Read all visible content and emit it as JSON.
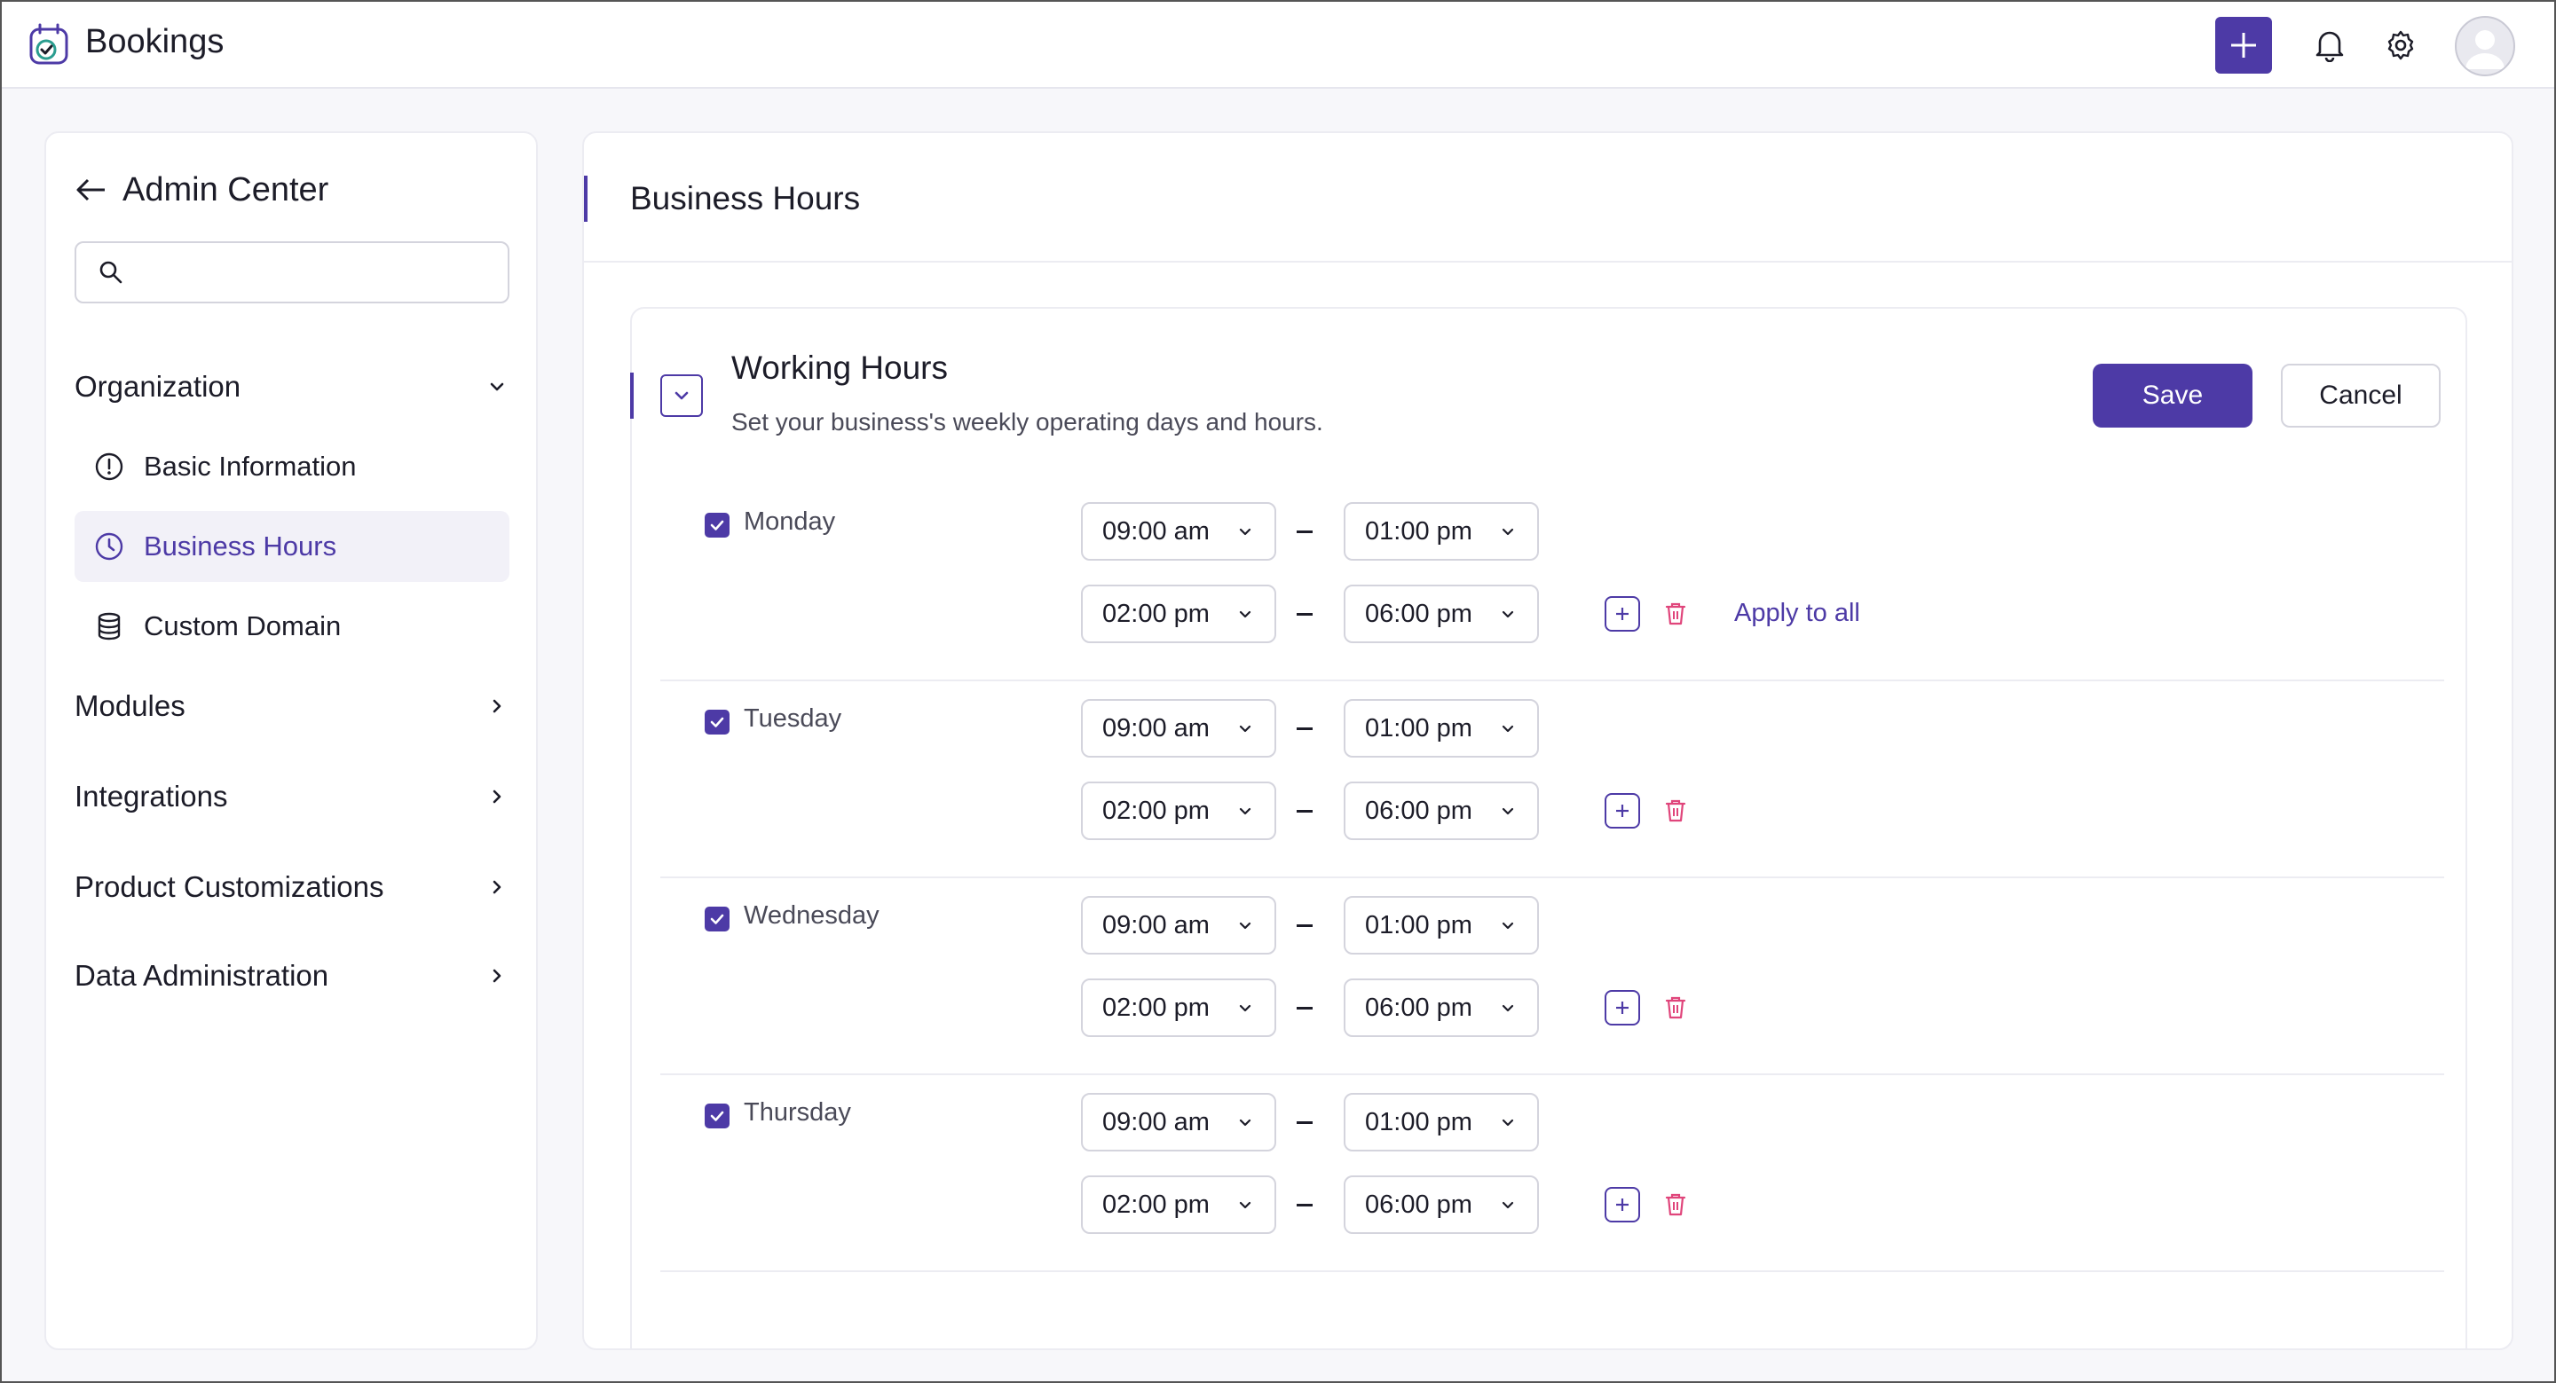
{
  "app": {
    "title": "Bookings"
  },
  "sidebar": {
    "back_title": "Admin Center",
    "search_placeholder": "",
    "organization_label": "Organization",
    "org_items": [
      {
        "label": "Basic Information",
        "icon": "info-icon"
      },
      {
        "label": "Business Hours",
        "icon": "clock-icon",
        "active": true
      },
      {
        "label": "Custom Domain",
        "icon": "database-icon"
      }
    ],
    "sections": [
      {
        "label": "Modules"
      },
      {
        "label": "Integrations"
      },
      {
        "label": "Product Customizations"
      },
      {
        "label": "Data Administration"
      }
    ]
  },
  "main": {
    "title": "Business Hours",
    "card": {
      "title": "Working Hours",
      "description": "Set your business's weekly operating days and hours.",
      "save_label": "Save",
      "cancel_label": "Cancel",
      "apply_all_label": "Apply to all",
      "days": [
        {
          "name": "Monday",
          "checked": true,
          "slots": [
            [
              "09:00 am",
              "01:00 pm"
            ],
            [
              "02:00 pm",
              "06:00 pm"
            ]
          ]
        },
        {
          "name": "Tuesday",
          "checked": true,
          "slots": [
            [
              "09:00 am",
              "01:00 pm"
            ],
            [
              "02:00 pm",
              "06:00 pm"
            ]
          ]
        },
        {
          "name": "Wednesday",
          "checked": true,
          "slots": [
            [
              "09:00 am",
              "01:00 pm"
            ],
            [
              "02:00 pm",
              "06:00 pm"
            ]
          ]
        },
        {
          "name": "Thursday",
          "checked": true,
          "slots": [
            [
              "09:00 am",
              "01:00 pm"
            ],
            [
              "02:00 pm",
              "06:00 pm"
            ]
          ]
        }
      ]
    }
  },
  "colors": {
    "accent": "#4d3aa6",
    "delete": "#e0457b"
  }
}
